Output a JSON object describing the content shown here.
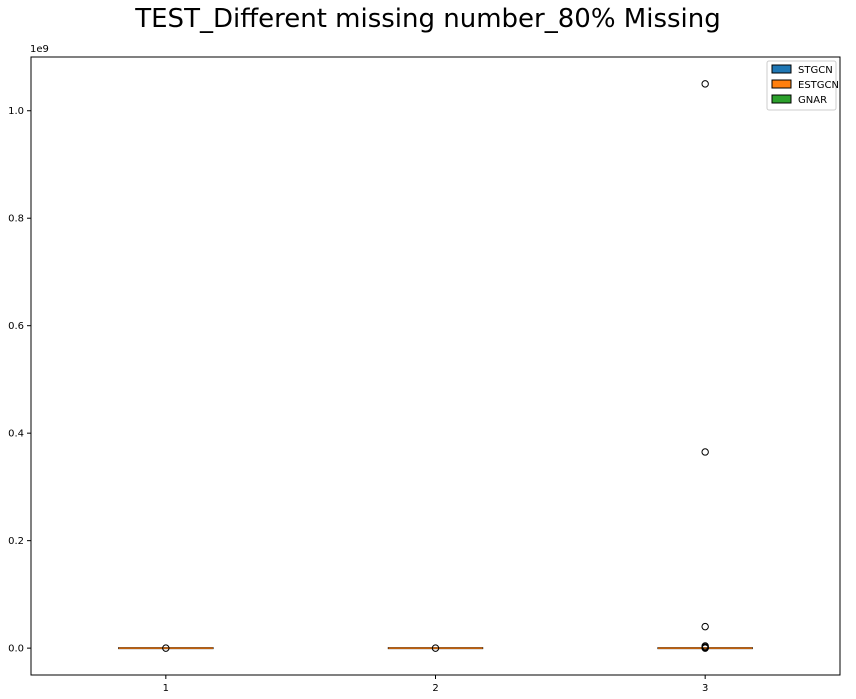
{
  "chart_data": {
    "type": "box",
    "title": "TEST_Different missing number_80% Missing",
    "xlabel": "",
    "ylabel": "",
    "y_offset_label": "1e9",
    "categories": [
      "1",
      "2",
      "3"
    ],
    "xlim": [
      0.5,
      3.5
    ],
    "ylim": [
      -0.05,
      1.1
    ],
    "y_unit_multiplier": 1000000000.0,
    "yticks": [
      0.0,
      0.2,
      0.4,
      0.6,
      0.8,
      1.0
    ],
    "ytick_labels": [
      "0.0",
      "0.2",
      "0.4",
      "0.6",
      "0.8",
      "1.0"
    ],
    "grid": false,
    "legend_position": "top-right",
    "legend": [
      {
        "name": "STGCN",
        "color": "#1f77b4"
      },
      {
        "name": "ESTGCN",
        "color": "#ff7f0e"
      },
      {
        "name": "GNAR",
        "color": "#2ca02c"
      }
    ],
    "boxes": [
      {
        "x": 1,
        "q1": 0,
        "median": 0,
        "q3": 0,
        "whisker_low": 0,
        "whisker_high": 0,
        "outliers": [
          0.0
        ]
      },
      {
        "x": 2,
        "q1": 0,
        "median": 0,
        "q3": 0,
        "whisker_low": 0,
        "whisker_high": 0,
        "outliers": [
          0.0
        ]
      },
      {
        "x": 3,
        "q1": 0,
        "median": 0,
        "q3": 0,
        "whisker_low": 0,
        "whisker_high": 0,
        "outliers": [
          0.0,
          0.001,
          0.002,
          0.004,
          0.04,
          0.365,
          1.05
        ]
      }
    ],
    "colors": {
      "box_edge": "#000000",
      "median": "#ff7f0e",
      "flier": "#000000"
    }
  }
}
